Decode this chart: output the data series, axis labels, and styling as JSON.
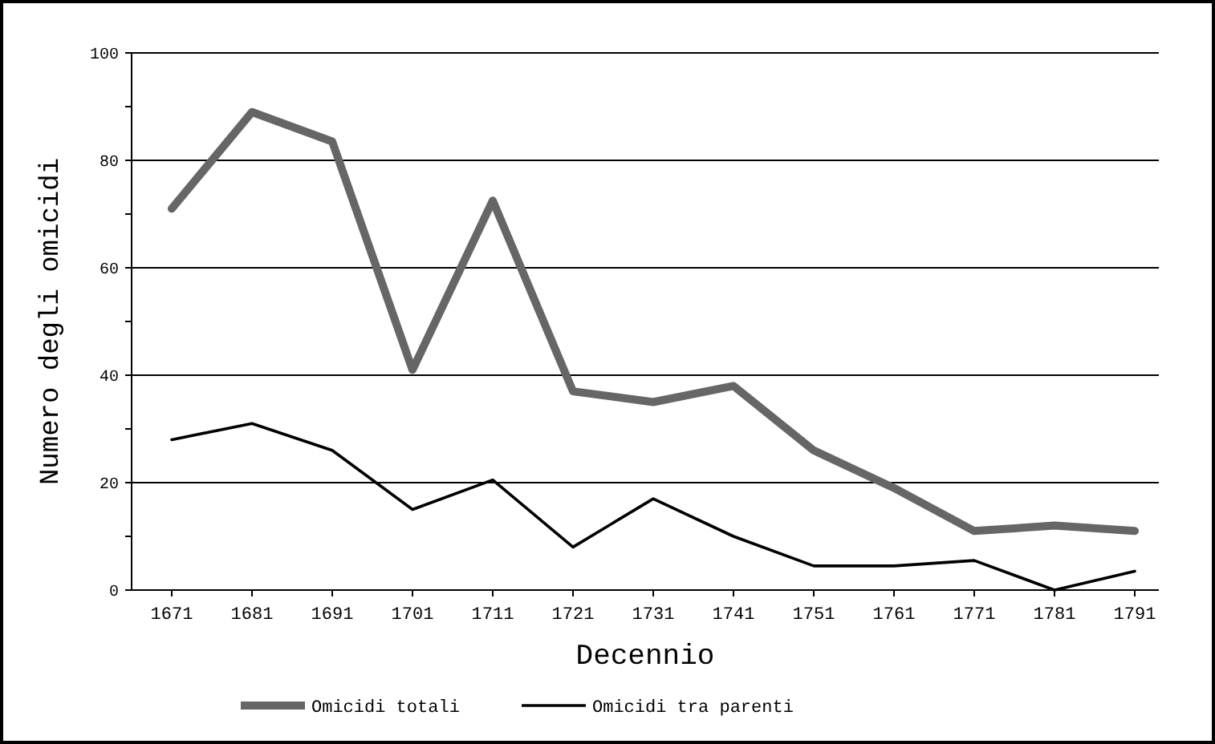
{
  "chart_data": {
    "type": "line",
    "xlabel": "Decennio",
    "ylabel": "Numero degli omicidi",
    "categories": [
      "1671",
      "1681",
      "1691",
      "1701",
      "1711",
      "1721",
      "1731",
      "1741",
      "1751",
      "1761",
      "1771",
      "1781",
      "1791"
    ],
    "series": [
      {
        "name": "Omicidi totali",
        "color": "#666666",
        "values": [
          71,
          89,
          83.5,
          41,
          72.5,
          37,
          35,
          38,
          26,
          19,
          11,
          12,
          11
        ]
      },
      {
        "name": "Omicidi tra parenti",
        "color": "#000000",
        "values": [
          28,
          31,
          26,
          15,
          20.5,
          8,
          17,
          10,
          4.5,
          4.5,
          5.5,
          0,
          3.5
        ]
      }
    ],
    "ylim": [
      0,
      100
    ],
    "yticks": [
      0,
      20,
      40,
      60,
      80,
      100
    ],
    "grid": "y",
    "legend": "bottom",
    "marker": "none",
    "line_style": "solid"
  }
}
